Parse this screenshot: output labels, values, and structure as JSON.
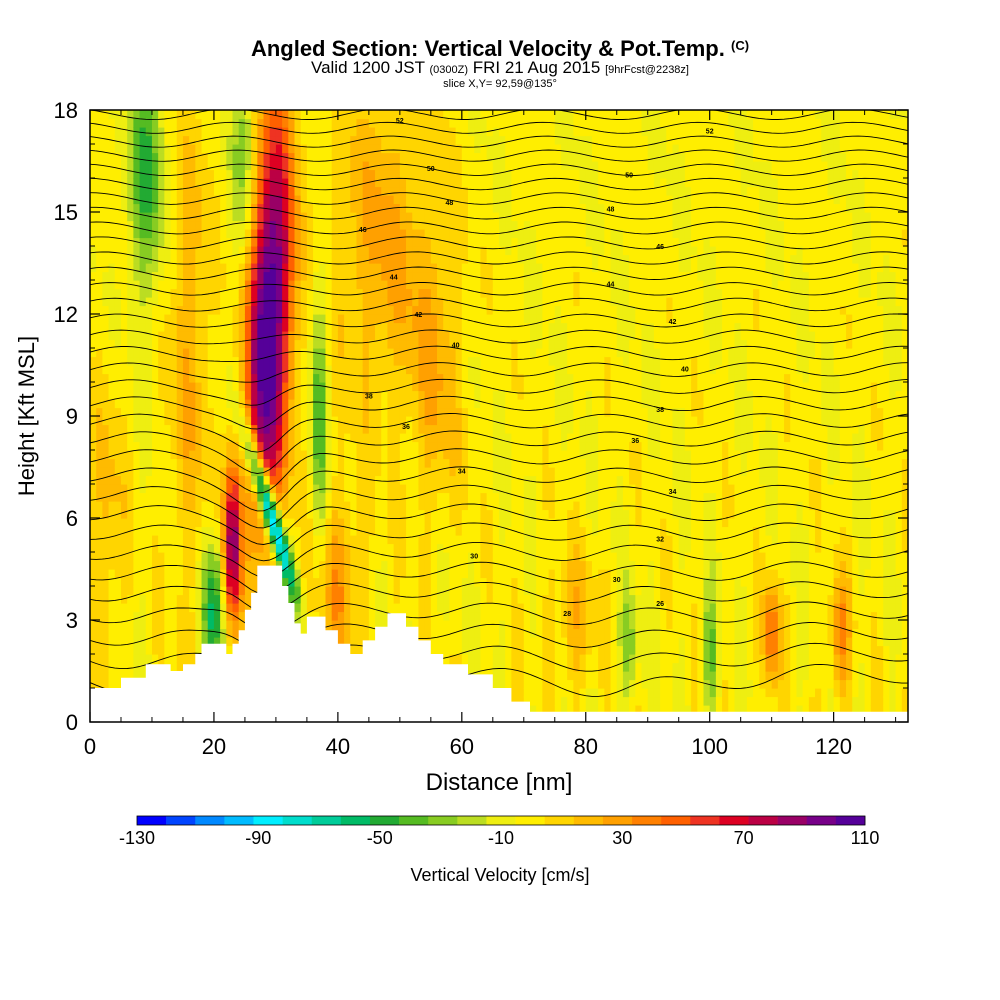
{
  "title": {
    "main": "Angled Section: Vertical Velocity & Pot.Temp.",
    "main_unit": "(C)",
    "valid_prefix": "Valid 1200 JST",
    "valid_utc": "(0300Z)",
    "valid_date": "FRI 21 Aug 2015",
    "forecast": "[9hrFcst@2238z]",
    "slice": "slice X,Y= 92,59@135°"
  },
  "colors": {
    "terrain": "#ffffff",
    "background_field": "#ffee00",
    "contour": "#000000",
    "palette": [
      "#0000ff",
      "#0044ff",
      "#0088ff",
      "#00bbff",
      "#00eeff",
      "#00ddcc",
      "#00cc99",
      "#00bb66",
      "#22aa33",
      "#55bb22",
      "#88cc22",
      "#bbdd22",
      "#eeee11",
      "#ffee00",
      "#ffd500",
      "#ffbb00",
      "#ffa000",
      "#ff8000",
      "#ff6000",
      "#ee3322",
      "#dd0022",
      "#bb0044",
      "#990066",
      "#770088",
      "#550099"
    ]
  },
  "chart_data": {
    "type": "heatmap",
    "xlabel": "Distance [nm]",
    "ylabel": "Height [Kft MSL]",
    "xlim": [
      0,
      132
    ],
    "ylim": [
      0,
      18
    ],
    "xticks": [
      0,
      20,
      40,
      60,
      80,
      100,
      120
    ],
    "yticks": [
      0,
      3,
      6,
      9,
      12,
      15,
      18
    ],
    "colorbar": {
      "label": "Vertical Velocity [cm/s]",
      "min": -130,
      "max": 110,
      "step": 10,
      "ticks": [
        -130,
        -90,
        -50,
        -10,
        30,
        70,
        110
      ]
    },
    "terrain_profile": [
      [
        0,
        0
      ],
      [
        0,
        1.0
      ],
      [
        5,
        1.0
      ],
      [
        5,
        1.3
      ],
      [
        9,
        1.3
      ],
      [
        9,
        1.7
      ],
      [
        13,
        1.7
      ],
      [
        13,
        1.5
      ],
      [
        15,
        1.5
      ],
      [
        15,
        1.7
      ],
      [
        17,
        1.7
      ],
      [
        17,
        2.0
      ],
      [
        18,
        2.0
      ],
      [
        18,
        2.3
      ],
      [
        22,
        2.3
      ],
      [
        22,
        2.0
      ],
      [
        23,
        2.0
      ],
      [
        23,
        2.3
      ],
      [
        24,
        2.3
      ],
      [
        24,
        2.7
      ],
      [
        25,
        2.7
      ],
      [
        25,
        3.3
      ],
      [
        26,
        3.3
      ],
      [
        26,
        3.8
      ],
      [
        27,
        3.8
      ],
      [
        27,
        4.6
      ],
      [
        31,
        4.6
      ],
      [
        31,
        4.0
      ],
      [
        32,
        4.0
      ],
      [
        32,
        3.5
      ],
      [
        33,
        3.5
      ],
      [
        33,
        2.9
      ],
      [
        34,
        2.9
      ],
      [
        34,
        2.6
      ],
      [
        35,
        2.6
      ],
      [
        35,
        3.1
      ],
      [
        38,
        3.1
      ],
      [
        38,
        2.7
      ],
      [
        40,
        2.7
      ],
      [
        40,
        2.3
      ],
      [
        42,
        2.3
      ],
      [
        42,
        2.0
      ],
      [
        44,
        2.0
      ],
      [
        44,
        2.4
      ],
      [
        46,
        2.4
      ],
      [
        46,
        2.8
      ],
      [
        48,
        2.8
      ],
      [
        48,
        3.2
      ],
      [
        51,
        3.2
      ],
      [
        51,
        2.8
      ],
      [
        53,
        2.8
      ],
      [
        53,
        2.4
      ],
      [
        55,
        2.4
      ],
      [
        55,
        2.0
      ],
      [
        57,
        2.0
      ],
      [
        57,
        1.7
      ],
      [
        61,
        1.7
      ],
      [
        61,
        1.4
      ],
      [
        65,
        1.4
      ],
      [
        65,
        1.0
      ],
      [
        68,
        1.0
      ],
      [
        68,
        0.6
      ],
      [
        71,
        0.6
      ],
      [
        71,
        0.3
      ],
      [
        132,
        0.3
      ],
      [
        132,
        0
      ]
    ],
    "velocity_features": [
      {
        "x": 28,
        "y": 11.0,
        "sx": 2.0,
        "sy": 4.0,
        "w": 110,
        "tilt": 0.0
      },
      {
        "x": 31,
        "y": 14.0,
        "sx": 1.8,
        "sy": 4.0,
        "w": 60,
        "tilt": 0.0
      },
      {
        "x": 23,
        "y": 5.2,
        "sx": 1.0,
        "sy": 1.8,
        "w": 100,
        "tilt": 0.0
      },
      {
        "x": 29,
        "y": 6.2,
        "sx": 1.0,
        "sy": 1.6,
        "w": -130,
        "tilt": -1.6
      },
      {
        "x": 20,
        "y": 3.3,
        "sx": 1.2,
        "sy": 1.5,
        "w": -60,
        "tilt": 0.0
      },
      {
        "x": 9,
        "y": 16.0,
        "sx": 2.0,
        "sy": 2.6,
        "w": -45,
        "tilt": 0.0
      },
      {
        "x": 25,
        "y": 16.5,
        "sx": 1.5,
        "sy": 2.5,
        "w": -35,
        "tilt": 0.0
      },
      {
        "x": 37,
        "y": 9.0,
        "sx": 1.0,
        "sy": 3.0,
        "w": -40,
        "tilt": 0.0
      },
      {
        "x": 16,
        "y": 11.0,
        "sx": 2.5,
        "sy": 5.0,
        "w": 25,
        "tilt": 0.0
      },
      {
        "x": 47,
        "y": 14.0,
        "sx": 6.0,
        "sy": 3.5,
        "w": 28,
        "tilt": 0.0
      },
      {
        "x": 56,
        "y": 10.0,
        "sx": 3.0,
        "sy": 3.0,
        "w": 22,
        "tilt": 0.0
      },
      {
        "x": 40,
        "y": 4.0,
        "sx": 3.0,
        "sy": 2.0,
        "w": 30,
        "tilt": 0.0
      },
      {
        "x": 100,
        "y": 2.0,
        "sx": 1.0,
        "sy": 1.2,
        "w": -35,
        "tilt": 0.0
      },
      {
        "x": 110,
        "y": 2.5,
        "sx": 1.0,
        "sy": 1.2,
        "w": 50,
        "tilt": 0.0
      },
      {
        "x": 121,
        "y": 2.5,
        "sx": 1.2,
        "sy": 1.3,
        "w": 40,
        "tilt": 0.0
      },
      {
        "x": 87,
        "y": 2.2,
        "sx": 1.0,
        "sy": 1.2,
        "w": -30,
        "tilt": 0.0
      },
      {
        "x": 78,
        "y": 3.0,
        "sx": 3.0,
        "sy": 1.5,
        "w": 22,
        "tilt": 0.0
      },
      {
        "x": 3,
        "y": 6.0,
        "sx": 2.0,
        "sy": 3.0,
        "w": 20,
        "tilt": 0.0
      }
    ],
    "theta_contours": {
      "min": 26,
      "max": 62,
      "step": 1,
      "label_values": [
        26,
        28,
        30,
        32,
        34,
        36,
        38,
        40,
        42,
        44,
        46,
        48,
        50,
        52
      ],
      "labels": [
        {
          "x": 92,
          "y": 3.5,
          "value": 26
        },
        {
          "x": 77,
          "y": 3.2,
          "value": 28
        },
        {
          "x": 85,
          "y": 4.2,
          "value": 30
        },
        {
          "x": 92,
          "y": 5.4,
          "value": 32
        },
        {
          "x": 62,
          "y": 4.9,
          "value": 30
        },
        {
          "x": 94,
          "y": 6.8,
          "value": 34
        },
        {
          "x": 60,
          "y": 7.4,
          "value": 34
        },
        {
          "x": 88,
          "y": 8.3,
          "value": 36
        },
        {
          "x": 51,
          "y": 8.7,
          "value": 36
        },
        {
          "x": 92,
          "y": 9.2,
          "value": 38
        },
        {
          "x": 45,
          "y": 9.6,
          "value": 38
        },
        {
          "x": 96,
          "y": 10.4,
          "value": 40
        },
        {
          "x": 59,
          "y": 11.1,
          "value": 40
        },
        {
          "x": 94,
          "y": 11.8,
          "value": 42
        },
        {
          "x": 53,
          "y": 12.0,
          "value": 42
        },
        {
          "x": 84,
          "y": 12.9,
          "value": 44
        },
        {
          "x": 49,
          "y": 13.1,
          "value": 44
        },
        {
          "x": 92,
          "y": 14.0,
          "value": 46
        },
        {
          "x": 44,
          "y": 14.5,
          "value": 46
        },
        {
          "x": 84,
          "y": 15.1,
          "value": 48
        },
        {
          "x": 58,
          "y": 15.3,
          "value": 48
        },
        {
          "x": 87,
          "y": 16.1,
          "value": 50
        },
        {
          "x": 55,
          "y": 16.3,
          "value": 50
        },
        {
          "x": 100,
          "y": 17.4,
          "value": 52
        },
        {
          "x": 50,
          "y": 17.7,
          "value": 52
        }
      ]
    }
  }
}
